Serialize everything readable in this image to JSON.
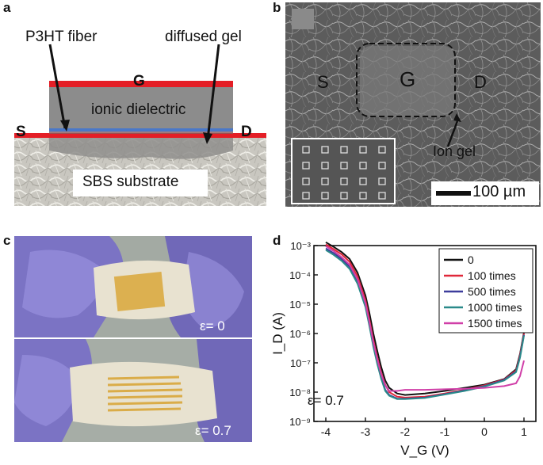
{
  "panels": {
    "a": {
      "letter": "a",
      "labels": {
        "p3ht": "P3HT fiber",
        "gel": "diffused gel",
        "gate": "G",
        "dielectric": "ionic dielectric",
        "source": "S",
        "drain": "D",
        "substrate": "SBS substrate"
      }
    },
    "b": {
      "letter": "b",
      "labels": {
        "source": "S",
        "gate": "G",
        "drain": "D",
        "ion_gel": "Ion gel",
        "scale": "100 µm"
      }
    },
    "c": {
      "letter": "c",
      "strain_top": "ε= 0",
      "strain_bottom": "ε= 0.7"
    },
    "d": {
      "letter": "d",
      "annotation": "ε= 0.7"
    }
  },
  "colors": {
    "electrode_red": "#e41e26",
    "dielectric_gray": "#8c8c8c",
    "blue_layer": "#4a78c8",
    "glove_purple": "#7b73c4"
  },
  "chart_data": {
    "type": "line",
    "xlabel": "V_G (V)",
    "ylabel": "I_D (A)",
    "xlim": [
      -4.3,
      1.3
    ],
    "ylim_log10": [
      -9,
      -3
    ],
    "y_scale": "log",
    "x_ticks": [
      "-4",
      "-3",
      "-2",
      "-1",
      "0",
      "1"
    ],
    "y_ticks": [
      "10⁻⁹",
      "10⁻⁸",
      "10⁻⁷",
      "10⁻⁶",
      "10⁻⁵",
      "10⁻⁴",
      "10⁻³"
    ],
    "legend_position": "top-right",
    "series": [
      {
        "name": "0",
        "color": "#111111",
        "x": [
          -4,
          -3.8,
          -3.6,
          -3.4,
          -3.2,
          -3.0,
          -2.9,
          -2.8,
          -2.7,
          -2.6,
          -2.5,
          -2.4,
          -2.2,
          -2.0,
          -1.5,
          -1.0,
          -0.5,
          0,
          0.5,
          0.8,
          0.9,
          1.0
        ],
        "y": [
          0.0013,
          0.0009,
          0.0006,
          0.00035,
          0.00012,
          2e-05,
          5e-06,
          1e-06,
          2.5e-07,
          7e-08,
          2.5e-08,
          1.4e-08,
          9e-09,
          8e-09,
          9e-09,
          1.1e-08,
          1.4e-08,
          1.8e-08,
          2.8e-08,
          6e-08,
          2e-07,
          1.1e-06
        ]
      },
      {
        "name": "100 times",
        "color": "#e0283a",
        "x": [
          -4,
          -3.8,
          -3.6,
          -3.4,
          -3.2,
          -3.0,
          -2.9,
          -2.8,
          -2.7,
          -2.6,
          -2.5,
          -2.4,
          -2.2,
          -2.0,
          -1.5,
          -1.0,
          -0.5,
          0,
          0.5,
          0.8,
          0.9,
          1.0
        ],
        "y": [
          0.0011,
          0.00075,
          0.0005,
          0.00028,
          9e-05,
          1.4e-05,
          3e-06,
          6e-07,
          1.5e-07,
          4.5e-08,
          1.8e-08,
          1e-08,
          7e-09,
          6.5e-09,
          7e-09,
          9e-09,
          1.2e-08,
          1.7e-08,
          2.7e-08,
          5.5e-08,
          1.8e-07,
          1e-06
        ]
      },
      {
        "name": "500 times",
        "color": "#3d3d9c",
        "x": [
          -4,
          -3.8,
          -3.6,
          -3.4,
          -3.2,
          -3.0,
          -2.9,
          -2.8,
          -2.7,
          -2.6,
          -2.5,
          -2.4,
          -2.2,
          -2.0,
          -1.5,
          -1.0,
          -0.5,
          0,
          0.5,
          0.8,
          0.9,
          1.0
        ],
        "y": [
          0.0008,
          0.00055,
          0.00035,
          0.00019,
          6e-05,
          9e-06,
          2e-06,
          4e-07,
          1e-07,
          3e-08,
          1.2e-08,
          8e-09,
          6e-09,
          6e-09,
          6.5e-09,
          8.5e-09,
          1.15e-08,
          1.6e-08,
          2.6e-08,
          5e-08,
          1.6e-07,
          9e-07
        ]
      },
      {
        "name": "1000 times",
        "color": "#2a8a8a",
        "x": [
          -4,
          -3.8,
          -3.6,
          -3.4,
          -3.2,
          -3.0,
          -2.9,
          -2.8,
          -2.7,
          -2.6,
          -2.5,
          -2.4,
          -2.2,
          -2.0,
          -1.5,
          -1.0,
          -0.5,
          0,
          0.5,
          0.8,
          0.9,
          1.0
        ],
        "y": [
          0.0007,
          0.00048,
          0.0003,
          0.00016,
          5e-05,
          8e-06,
          1.8e-06,
          3.5e-07,
          9e-08,
          2.8e-08,
          1.1e-08,
          7.5e-09,
          5.8e-09,
          5.8e-09,
          6.3e-09,
          8.3e-09,
          1.1e-08,
          1.55e-08,
          2.5e-08,
          4.8e-08,
          1.5e-07,
          8.5e-07
        ]
      },
      {
        "name": "1500 times",
        "color": "#d03fa8",
        "x": [
          -4,
          -3.8,
          -3.6,
          -3.4,
          -3.2,
          -3.0,
          -2.9,
          -2.8,
          -2.7,
          -2.6,
          -2.5,
          -2.4,
          -2.2,
          -2.0,
          -1.5,
          -1.0,
          -0.5,
          0,
          0.5,
          0.8,
          0.9,
          1.0
        ],
        "y": [
          0.00095,
          0.00065,
          0.0004,
          0.00022,
          7e-05,
          1.1e-05,
          2.5e-06,
          5e-07,
          1.3e-07,
          4e-08,
          1.7e-08,
          1.1e-08,
          1.1e-08,
          1.2e-08,
          1.2e-08,
          1.25e-08,
          1.3e-08,
          1.4e-08,
          1.6e-08,
          2e-08,
          3.5e-08,
          1.2e-07
        ]
      }
    ]
  }
}
